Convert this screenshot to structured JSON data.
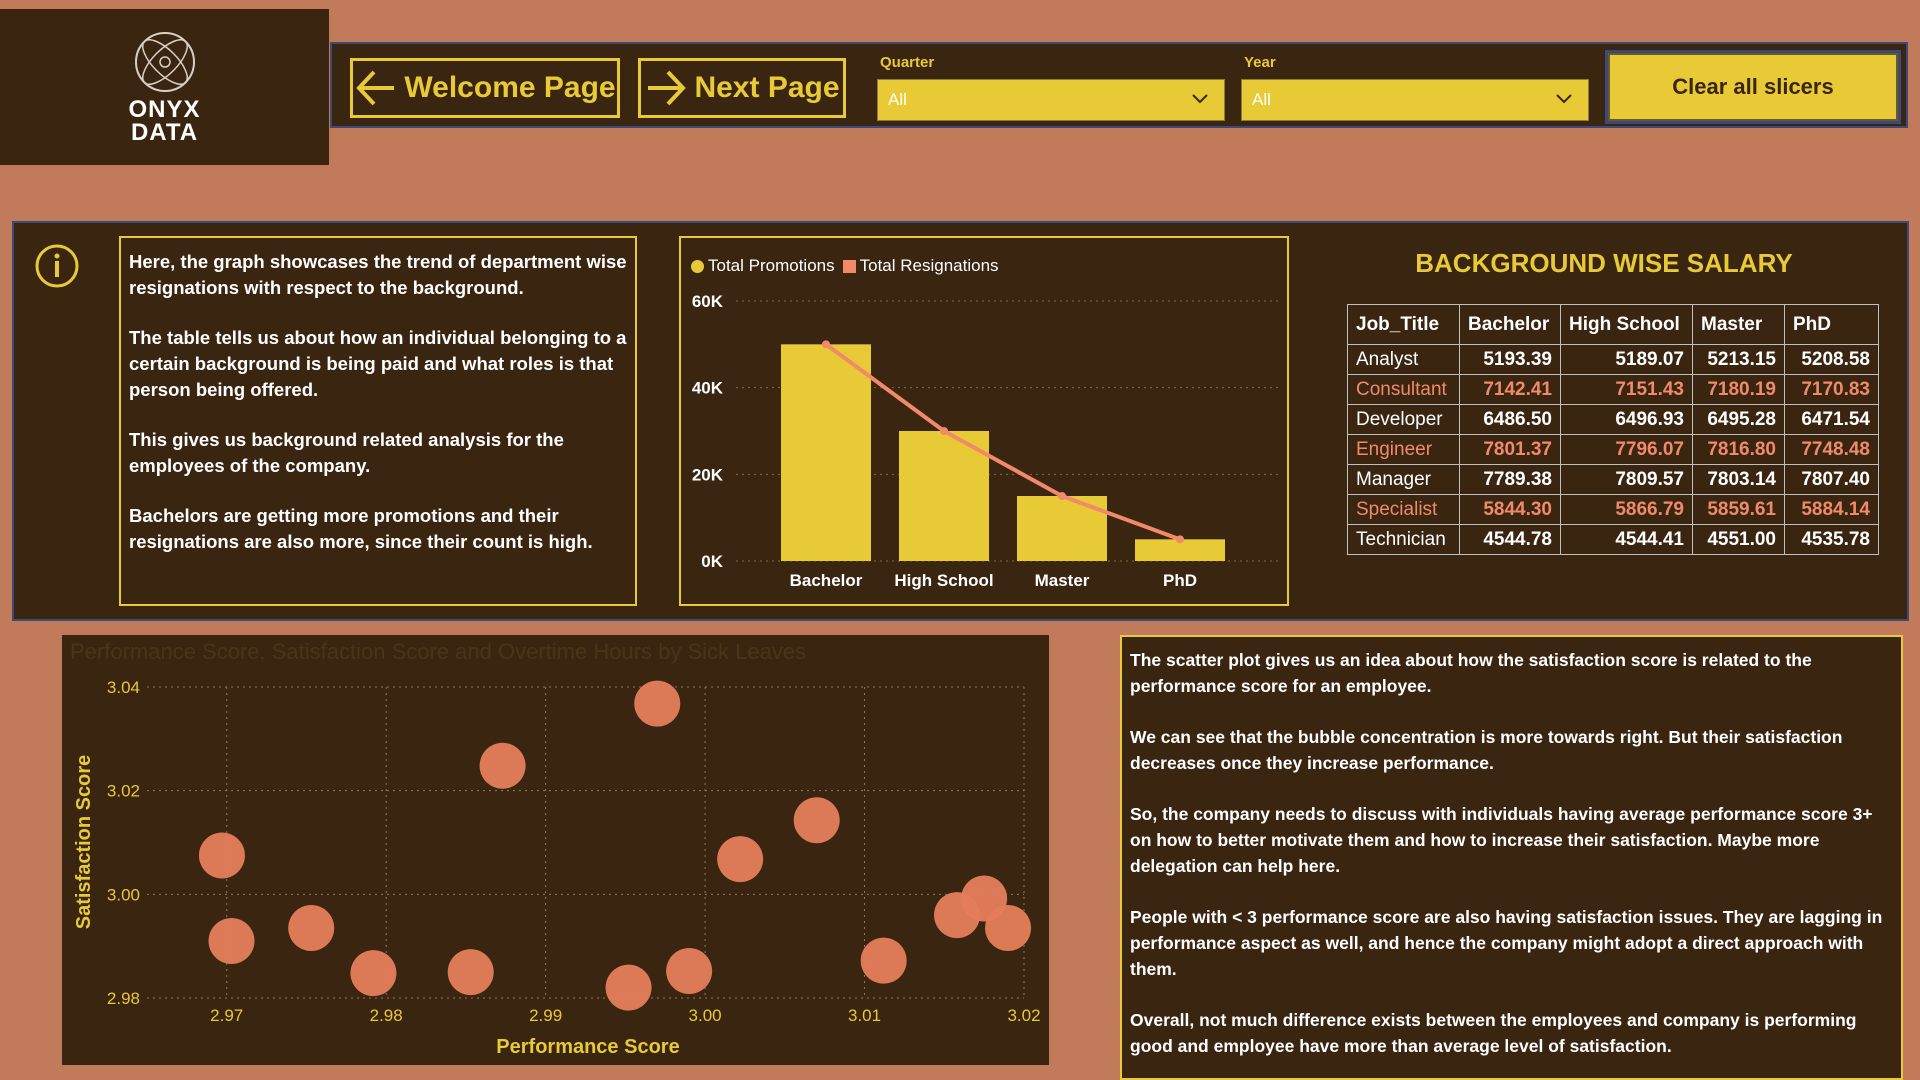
{
  "logo": {
    "line1": "ONYX",
    "line2": "DATA"
  },
  "nav": {
    "welcome_label": "Welcome Page",
    "next_label": "Next Page"
  },
  "slicers": {
    "quarter": {
      "label": "Quarter",
      "value": "All"
    },
    "year": {
      "label": "Year",
      "value": "All"
    }
  },
  "clear_label": "Clear all slicers",
  "info_text": [
    "Here, the graph showcases the trend of department wise resignations with respect to the background.",
    "The table tells us about how an individual belonging to a certain background is being paid and what roles is that person being offered.",
    "This gives us background related analysis for the employees of the company.",
    "Bachelors are getting more promotions and their resignations are also more, since their count is high."
  ],
  "colors": {
    "accent": "#e8c936",
    "secondary": "#f08a6a",
    "panel": "#3a2511",
    "background": "#c27b5a"
  },
  "chart_data": [
    {
      "type": "bar",
      "categories": [
        "Bachelor",
        "High School",
        "Master",
        "PhD"
      ],
      "series": [
        {
          "name": "Total Promotions",
          "kind": "bar",
          "values": [
            50000,
            30000,
            15000,
            5000
          ]
        },
        {
          "name": "Total Resignations",
          "kind": "line",
          "values": [
            50000,
            30000,
            15000,
            5000
          ]
        }
      ],
      "ylim": [
        0,
        60000
      ],
      "yticks": [
        "0K",
        "20K",
        "40K",
        "60K"
      ],
      "grid": true,
      "legend": "top-left"
    },
    {
      "type": "scatter",
      "title": "Performance Score, Satisfaction Score and Overtime Hours by Sick Leaves",
      "xlabel": "Performance Score",
      "ylabel": "Satisfaction Score",
      "xlim": [
        2.965,
        3.02
      ],
      "ylim": [
        2.98,
        3.04
      ],
      "xticks": [
        "2.97",
        "2.98",
        "2.99",
        "3.00",
        "3.01",
        "3.02"
      ],
      "yticks": [
        "2.98",
        "3.00",
        "3.02",
        "3.04"
      ],
      "points": [
        {
          "x": 2.9697,
          "y": 3.0075
        },
        {
          "x": 2.9703,
          "y": 2.991
        },
        {
          "x": 2.9753,
          "y": 2.9935
        },
        {
          "x": 2.9792,
          "y": 2.9848
        },
        {
          "x": 2.9853,
          "y": 2.985
        },
        {
          "x": 2.9873,
          "y": 3.0248
        },
        {
          "x": 2.9952,
          "y": 2.982
        },
        {
          "x": 2.997,
          "y": 3.0368
        },
        {
          "x": 2.999,
          "y": 2.9852
        },
        {
          "x": 3.0022,
          "y": 3.0068
        },
        {
          "x": 3.007,
          "y": 3.0143
        },
        {
          "x": 3.0112,
          "y": 2.9872
        },
        {
          "x": 3.0158,
          "y": 2.996
        },
        {
          "x": 3.0175,
          "y": 2.9992
        },
        {
          "x": 3.019,
          "y": 2.9935
        }
      ],
      "grid": true
    }
  ],
  "salary": {
    "title": "BACKGROUND WISE SALARY",
    "headers": [
      "Job_Title",
      "Bachelor",
      "High School",
      "Master",
      "PhD"
    ],
    "rows": [
      [
        "Analyst",
        "5193.39",
        "5189.07",
        "5213.15",
        "5208.58"
      ],
      [
        "Consultant",
        "7142.41",
        "7151.43",
        "7180.19",
        "7170.83"
      ],
      [
        "Developer",
        "6486.50",
        "6496.93",
        "6495.28",
        "6471.54"
      ],
      [
        "Engineer",
        "7801.37",
        "7796.07",
        "7816.80",
        "7748.48"
      ],
      [
        "Manager",
        "7789.38",
        "7809.57",
        "7803.14",
        "7807.40"
      ],
      [
        "Specialist",
        "5844.30",
        "5866.79",
        "5859.61",
        "5884.14"
      ],
      [
        "Technician",
        "4544.78",
        "4544.41",
        "4551.00",
        "4535.78"
      ]
    ]
  },
  "bottom_text": [
    "The scatter plot gives us an idea about how the satisfaction score is related to the performance score for an employee.",
    "We can see that the bubble concentration is more towards right. But their satisfaction decreases once they increase performance.",
    "So, the company needs to discuss with individuals having average performance score 3+ on how to better motivate them and how to increase their satisfaction. Maybe more delegation can help here.",
    "People with < 3 performance score are also having satisfaction issues. They are lagging in performance aspect as well, and hence the company might adopt a direct approach with them.",
    "Overall, not much difference exists between the employees and company is performing good and employee have more than average level of satisfaction."
  ]
}
